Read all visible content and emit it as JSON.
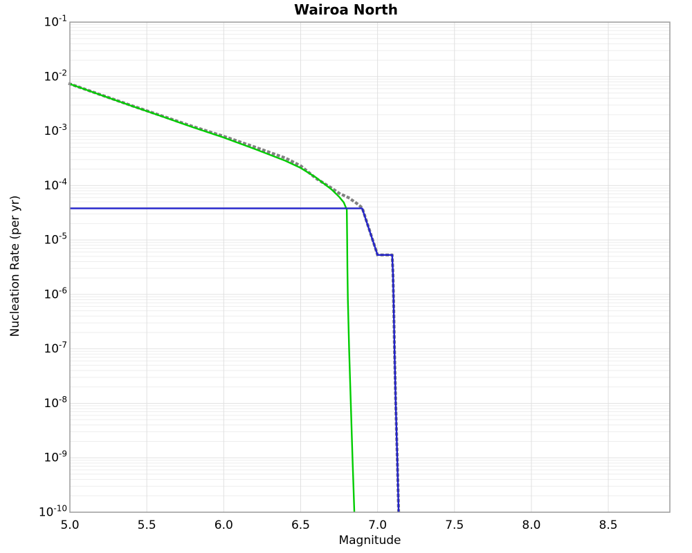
{
  "chart": {
    "title": "Wairoa North",
    "xlabel": "Magnitude",
    "ylabel": "Nucleation Rate (per yr)"
  },
  "chart_data": {
    "type": "line",
    "title": "Wairoa North",
    "xlabel": "Magnitude",
    "ylabel": "Nucleation Rate (per yr)",
    "xlim": [
      5.0,
      8.9
    ],
    "ylim_log10": [
      -10,
      -1
    ],
    "x_ticks": [
      5.0,
      5.5,
      6.0,
      6.5,
      7.0,
      7.5,
      8.0,
      8.5
    ],
    "y_tick_exponents": [
      -1,
      -2,
      -3,
      -4,
      -5,
      -6,
      -7,
      -8,
      -9,
      -10
    ],
    "grid": true,
    "legend": "none",
    "colors": {
      "grid_minor": "#ededed",
      "grid_major": "#e2e2e2",
      "grid_vertical": "#e0e0e0",
      "frame": "#9b9b9b",
      "text": "#000000"
    },
    "series": [
      {
        "name": "total-dotted-gray",
        "style": "dotted",
        "color": "#808080",
        "width": 4.2,
        "points": [
          [
            5.0,
            0.00734
          ],
          [
            5.2,
            0.00464
          ],
          [
            5.4,
            0.00294
          ],
          [
            5.6,
            0.00189
          ],
          [
            5.8,
            0.00121
          ],
          [
            6.0,
            0.0008
          ],
          [
            6.2,
            0.00051
          ],
          [
            6.4,
            0.00032
          ],
          [
            6.5,
            0.00023
          ],
          [
            6.6,
            0.000135
          ],
          [
            6.7,
            9e-05
          ],
          [
            6.75,
            7.2e-05
          ],
          [
            6.81,
            6e-05
          ],
          [
            6.86,
            4.8e-05
          ],
          [
            6.9,
            3.9e-05
          ],
          [
            7.0,
            5.3e-06
          ],
          [
            7.095,
            5.3e-06
          ],
          [
            7.1,
            2.5e-06
          ],
          [
            7.104,
            8e-07
          ],
          [
            7.11,
            1e-07
          ],
          [
            7.118,
            1e-08
          ],
          [
            7.128,
            1e-09
          ],
          [
            7.137,
            1e-10
          ]
        ]
      },
      {
        "name": "curve-solid-green",
        "style": "solid",
        "color": "#00cc00",
        "width": 2.4,
        "points": [
          [
            5.0,
            0.0073
          ],
          [
            5.2,
            0.0046
          ],
          [
            5.4,
            0.0029
          ],
          [
            5.6,
            0.00185
          ],
          [
            5.8,
            0.00117
          ],
          [
            6.0,
            0.00076
          ],
          [
            6.2,
            0.00047
          ],
          [
            6.4,
            0.000285
          ],
          [
            6.5,
            0.00021
          ],
          [
            6.6,
            0.00014
          ],
          [
            6.7,
            8.5e-05
          ],
          [
            6.75,
            6.2e-05
          ],
          [
            6.78,
            4.9e-05
          ],
          [
            6.8,
            3.6e-05
          ],
          [
            6.802,
            1.2e-05
          ],
          [
            6.804,
            3e-06
          ],
          [
            6.807,
            8e-07
          ],
          [
            6.815,
            1e-07
          ],
          [
            6.826,
            1e-08
          ],
          [
            6.837,
            1e-09
          ],
          [
            6.849,
            1e-10
          ]
        ]
      },
      {
        "name": "curve-solid-blue",
        "style": "solid",
        "color": "#2222cc",
        "width": 2.4,
        "points": [
          [
            5.0,
            3.8e-05
          ],
          [
            6.9,
            3.8e-05
          ],
          [
            7.0,
            5.3e-06
          ],
          [
            7.095,
            5.3e-06
          ],
          [
            7.1,
            2.5e-06
          ],
          [
            7.104,
            8e-07
          ],
          [
            7.11,
            1e-07
          ],
          [
            7.118,
            1e-08
          ],
          [
            7.128,
            1e-09
          ],
          [
            7.137,
            1e-10
          ]
        ]
      }
    ]
  }
}
